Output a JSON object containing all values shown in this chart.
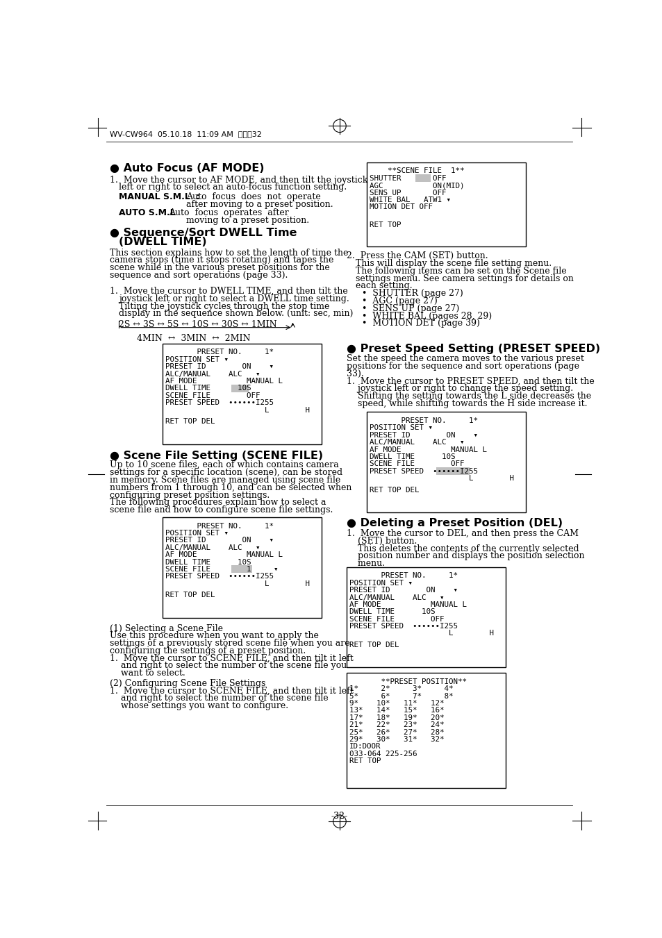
{
  "page_header": "WV-CW964  05.10.18  11:09 AM  ページ32",
  "page_number": "-32-",
  "background_color": "#ffffff",
  "text_color": "#000000",
  "section1_title": "● Auto Focus (AF MODE)",
  "section2_title": "● Sequence/Sort DWELL Time",
  "section2_title2": "(DWELL TIME)",
  "section3_title": "● Scene File Setting (SCENE FILE)",
  "section4_title": "● Preset Speed Setting (PRESET SPEED)",
  "section5_title": "● Deleting a Preset Position (DEL)",
  "dwell_sequence": "2S ↔ 3S ↔ 5S ↔ 10S ↔ 30S ↔ 1MIN",
  "dwell_sequence2": "4MIN  ↔  3MIN  ↔  2MIN",
  "box_preset_lines": [
    "       PRESET NO.     1*",
    "POSITION SET ▾",
    "PRESET ID        ON    ▾",
    "ALC/MANUAL    ALC   ▾",
    "AF MODE           MANUAL L",
    "DWELL TIME      10S",
    "SCENE FILE        OFF",
    "PRESET SPEED  ••••••I255",
    "                      L        H"
  ],
  "box_preset_lines_scene": [
    "       PRESET NO.     1*",
    "POSITION SET ▾",
    "PRESET ID        ON    ▾",
    "ALC/MANUAL    ALC   ▾",
    "AF MODE           MANUAL L",
    "DWELL TIME      10S",
    "SCENE FILE        1     ▾",
    "PRESET SPEED  ••••••I255",
    "                      L        H"
  ],
  "box_scene_file_lines": [
    "    **SCENE FILE  1**",
    "SHUTTER       OFF",
    "AGC           ON(MID)",
    "SENS UP       OFF",
    "WHITE BAL   ATW1 ▾",
    "MOTION DET OFF"
  ],
  "box_preset_position_lines": [
    "       **PRESET POSITION**",
    "1*     2*     3*     4*",
    "5*     6*     7*     8*",
    "9*    10*   11*   12*",
    "13*   14*   15*   16*",
    "17*   18*   19*   20*",
    "21*   22*   23*   24*",
    "25*   26*   27*   28*",
    "29*   30*   31*   32*",
    "ID:DOOR",
    "033-064 225-256",
    "RET TOP"
  ]
}
